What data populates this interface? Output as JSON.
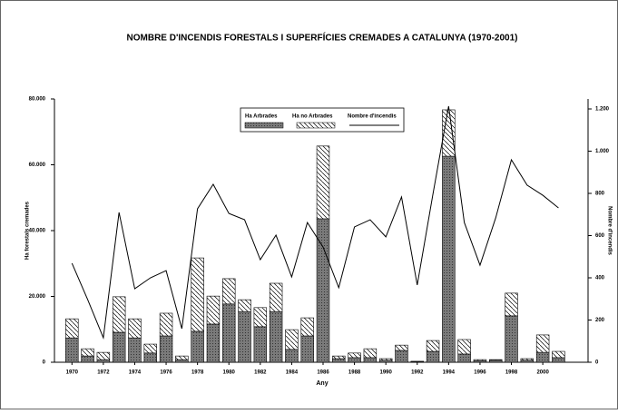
{
  "chart_data": {
    "type": "bar",
    "stacked": true,
    "title": "NOMBRE D'INCENDIS FORESTALS I SUPERFÍCIES CREMADES A CATALUNYA (1970-2001)",
    "x_label": "Any",
    "y_label": "Ha forestals cremades",
    "y2_label": "Nombre d'incendis",
    "x": [
      1970,
      1971,
      1972,
      1973,
      1974,
      1975,
      1976,
      1977,
      1978,
      1979,
      1980,
      1981,
      1982,
      1983,
      1984,
      1985,
      1986,
      1987,
      1988,
      1989,
      1990,
      1991,
      1992,
      1993,
      1994,
      1995,
      1996,
      1997,
      1998,
      1999,
      2000,
      2001
    ],
    "xlim": [
      1969,
      2003
    ],
    "xticks": [
      1970,
      1972,
      1974,
      1976,
      1978,
      1980,
      1982,
      1984,
      1986,
      1988,
      1990,
      1992,
      1994,
      1996,
      1998,
      2000
    ],
    "ylim": [
      0,
      80000
    ],
    "yticks": [
      0,
      {
        "value": 20000,
        "label": "20.000"
      },
      {
        "value": 40000,
        "label": "40.000"
      },
      {
        "value": 60000,
        "label": "60.000"
      },
      {
        "value": 80000,
        "label": "80.000"
      }
    ],
    "y2lim": [
      0,
      1200
    ],
    "y2ticks": [
      0,
      200,
      400,
      600,
      800,
      {
        "value": 1000,
        "label": "1.000"
      },
      {
        "value": 1200,
        "label": "1.200"
      }
    ],
    "series": [
      {
        "name": "Ha Arbrades",
        "type": "bar",
        "color": "#808080",
        "values": [
          7400,
          1900,
          800,
          9100,
          7400,
          2800,
          8000,
          800,
          9400,
          11600,
          17700,
          15400,
          10800,
          15400,
          3900,
          8000,
          43600,
          1100,
          1400,
          1400,
          600,
          3600,
          200,
          3300,
          62600,
          2500,
          500,
          600,
          14100,
          600,
          3000,
          1400
        ]
      },
      {
        "name": "Ha no Arbrades",
        "type": "bar",
        "color": "#ffffff",
        "values": [
          5800,
          2200,
          2200,
          10800,
          5800,
          2700,
          6900,
          1100,
          22300,
          8500,
          7700,
          3600,
          5800,
          8600,
          6000,
          5500,
          22100,
          800,
          1400,
          2700,
          500,
          1600,
          100,
          3300,
          14100,
          4400,
          300,
          200,
          6900,
          500,
          5300,
          1900
        ]
      },
      {
        "name": "Nombre d'incendis",
        "type": "line",
        "axis": "y2",
        "color": "#000000",
        "values": [
          469,
          297,
          116,
          710,
          348,
          400,
          434,
          159,
          727,
          843,
          705,
          675,
          486,
          602,
          404,
          662,
          546,
          353,
          641,
          675,
          594,
          783,
          366,
          796,
          1213,
          662,
          460,
          684,
          959,
          839,
          791,
          731
        ]
      }
    ]
  }
}
